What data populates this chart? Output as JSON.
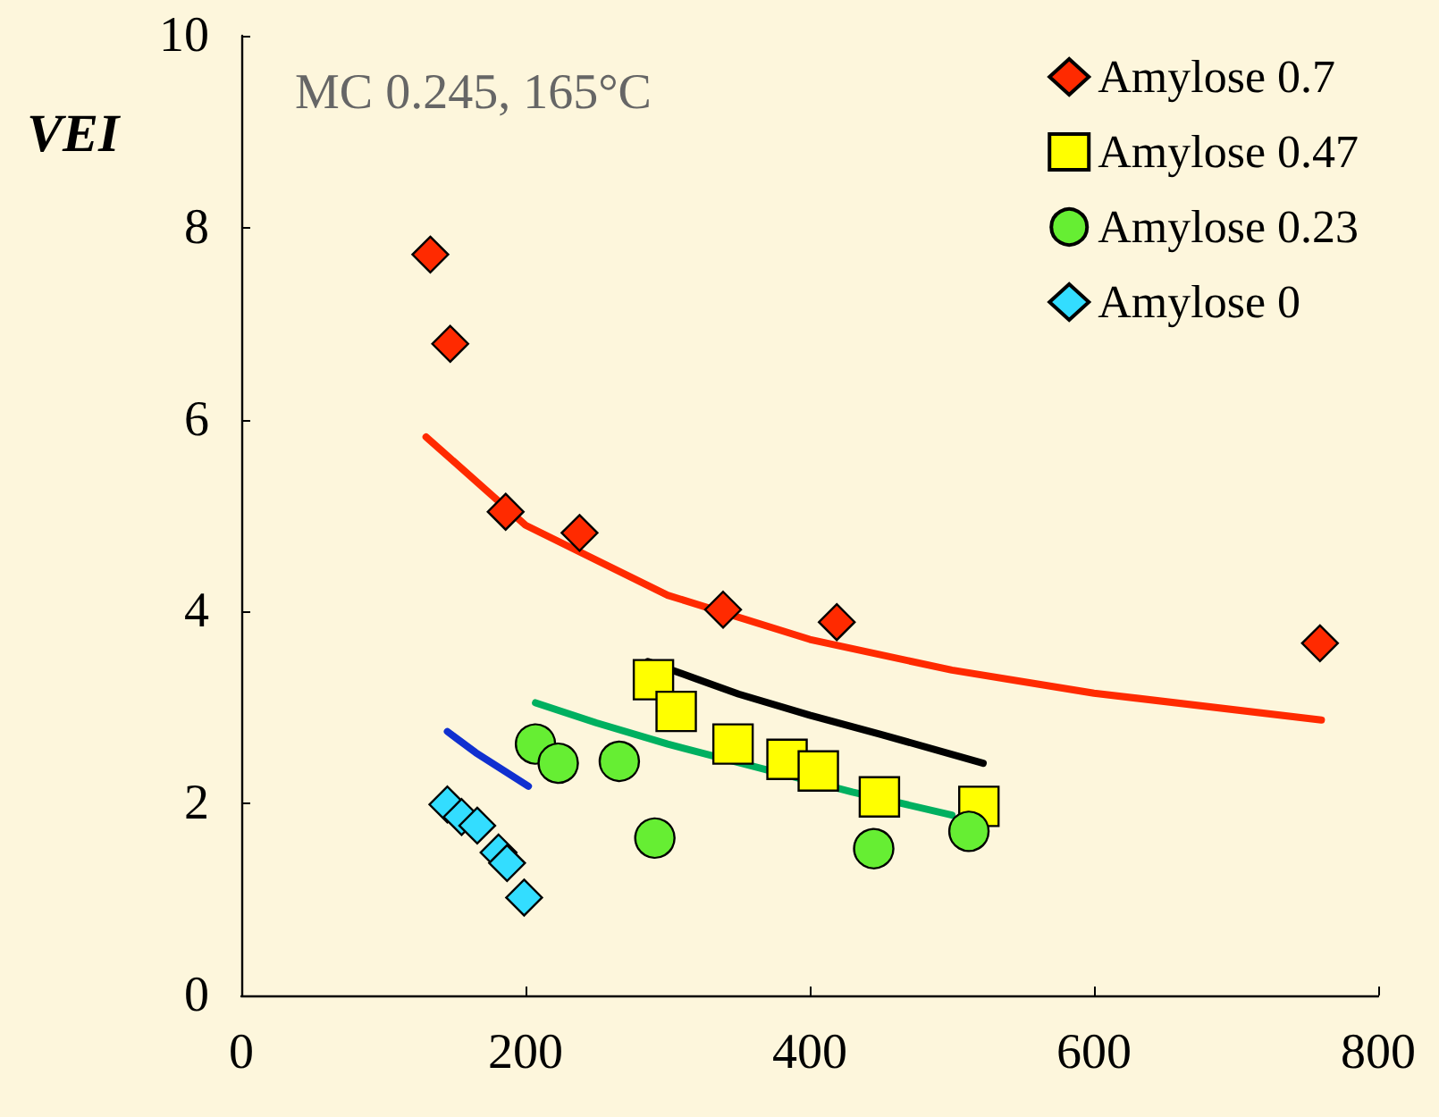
{
  "chart_data": {
    "type": "scatter",
    "ylabel": "VEI",
    "annotations": [
      "MC 0.245, 165°C"
    ],
    "xlim": [
      0,
      800
    ],
    "xticks": [
      0,
      200,
      400,
      600,
      800
    ],
    "ylim": [
      0,
      10
    ],
    "yticks": [
      0,
      2,
      4,
      6,
      8,
      10
    ],
    "grid": false,
    "legend": "top right",
    "series": [
      {
        "name": "Amylose 0.7",
        "color": "#ff2a00",
        "marker": "diamond",
        "x": [
          133,
          147,
          186,
          238,
          339,
          419,
          759
        ],
        "values": [
          7.72,
          6.79,
          5.04,
          4.82,
          4.02,
          3.89,
          3.67
        ]
      },
      {
        "name": "Amylose 0.47",
        "color": "#ffff00",
        "marker": "square",
        "x": [
          290,
          306,
          346,
          384,
          406,
          449,
          519
        ],
        "values": [
          3.29,
          2.96,
          2.62,
          2.46,
          2.34,
          2.07,
          1.97
        ]
      },
      {
        "name": "Amylose 0.23",
        "color": "#66ee33",
        "marker": "circle",
        "x": [
          207,
          223,
          266,
          291,
          445,
          512
        ],
        "values": [
          2.62,
          2.42,
          2.44,
          1.64,
          1.53,
          1.71
        ]
      },
      {
        "name": "Amylose 0",
        "color": "#33ddff",
        "marker": "diamond",
        "x": [
          145,
          155,
          166,
          181,
          187,
          199
        ],
        "values": [
          1.99,
          1.86,
          1.77,
          1.49,
          1.38,
          1.02
        ]
      },
      {
        "type": "line",
        "color": "#ff2a00",
        "marker": "none",
        "x": [
          130,
          200,
          300,
          400,
          500,
          600,
          760
        ],
        "values": [
          5.82,
          4.9,
          4.17,
          3.71,
          3.39,
          3.15,
          2.87
        ]
      },
      {
        "type": "line",
        "color": "#000000",
        "marker": "none",
        "x": [
          286,
          350,
          400,
          450,
          522
        ],
        "values": [
          3.48,
          3.14,
          2.92,
          2.72,
          2.42
        ]
      },
      {
        "type": "line",
        "color": "#00b060",
        "marker": "none",
        "x": [
          207,
          250,
          300,
          430,
          500
        ],
        "values": [
          3.05,
          2.84,
          2.62,
          2.12,
          1.88
        ]
      },
      {
        "type": "line",
        "color": "#1030d0",
        "marker": "none",
        "x": [
          145,
          165,
          185,
          202
        ],
        "values": [
          2.75,
          2.53,
          2.34,
          2.18
        ]
      }
    ]
  }
}
